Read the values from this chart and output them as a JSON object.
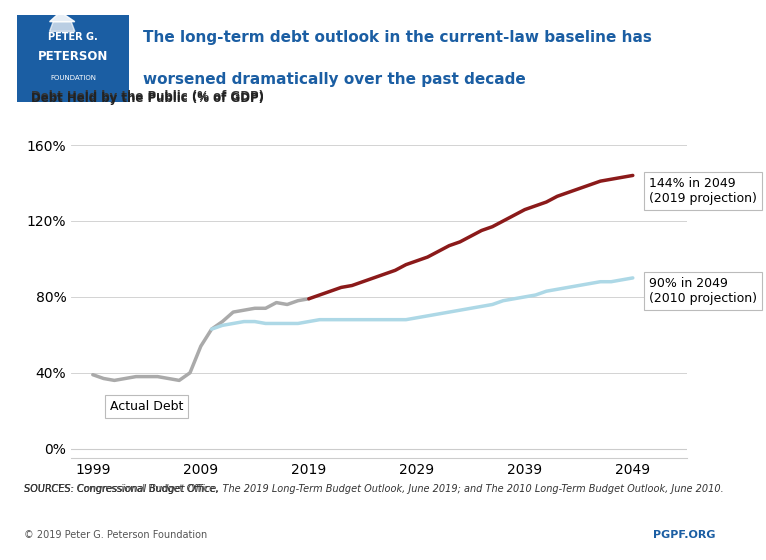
{
  "title_line1": "The long-term debt outlook in the current-law baseline has",
  "title_line2": "worsened dramatically over the past decade",
  "ylabel": "Debt Held by the Public (% of GDP)",
  "xlabel_ticks": [
    1999,
    2009,
    2019,
    2029,
    2039,
    2049
  ],
  "yticks": [
    0,
    40,
    80,
    120,
    160
  ],
  "ytick_labels": [
    "0%",
    "40%",
    "80%",
    "120%",
    "160%"
  ],
  "ylim": [
    -5,
    170
  ],
  "xlim": [
    1997,
    2054
  ],
  "title_color": "#1B5EA3",
  "background_color": "#FFFFFF",
  "logo_color": "#1B5EA3",
  "actual_debt_color": "#AAAAAA",
  "projection_2019_color": "#8B1A1A",
  "projection_2010_color": "#ADD8E6",
  "sources_text": "SOURCES: Congressional Budget Office, The 2019 Long-Term Budget Outlook, June 2019; and The 2010 Long-Term Budget Outlook, June 2010.",
  "copyright_text": "© 2019 Peter G. Peterson Foundation",
  "pgpf_text": "PGPF.ORG",
  "actual_debt_label": "Actual Debt",
  "annotation_2019": "144% in 2049\n(2019 projection)",
  "annotation_2010": "90% in 2049\n(2010 projection)",
  "actual_debt_years": [
    1999,
    2000,
    2001,
    2002,
    2003,
    2004,
    2005,
    2006,
    2007,
    2008,
    2009,
    2010,
    2011,
    2012,
    2013,
    2014,
    2015,
    2016,
    2017,
    2018,
    2019
  ],
  "actual_debt_values": [
    39,
    37,
    36,
    37,
    38,
    38,
    38,
    37,
    36,
    40,
    54,
    63,
    67,
    72,
    73,
    74,
    74,
    77,
    76,
    78,
    79
  ],
  "projection_2010_years": [
    2010,
    2011,
    2012,
    2013,
    2014,
    2015,
    2016,
    2017,
    2018,
    2019,
    2020,
    2021,
    2022,
    2023,
    2024,
    2025,
    2026,
    2027,
    2028,
    2029,
    2030,
    2031,
    2032,
    2033,
    2034,
    2035,
    2036,
    2037,
    2038,
    2039,
    2040,
    2041,
    2042,
    2043,
    2044,
    2045,
    2046,
    2047,
    2048,
    2049
  ],
  "projection_2010_values": [
    63,
    65,
    66,
    67,
    67,
    66,
    66,
    66,
    66,
    67,
    68,
    68,
    68,
    68,
    68,
    68,
    68,
    68,
    68,
    69,
    70,
    71,
    72,
    73,
    74,
    75,
    76,
    78,
    79,
    80,
    81,
    83,
    84,
    85,
    86,
    87,
    88,
    88,
    89,
    90
  ],
  "projection_2019_years": [
    2019,
    2020,
    2021,
    2022,
    2023,
    2024,
    2025,
    2026,
    2027,
    2028,
    2029,
    2030,
    2031,
    2032,
    2033,
    2034,
    2035,
    2036,
    2037,
    2038,
    2039,
    2040,
    2041,
    2042,
    2043,
    2044,
    2045,
    2046,
    2047,
    2048,
    2049
  ],
  "projection_2019_values": [
    79,
    81,
    83,
    85,
    86,
    88,
    90,
    92,
    94,
    97,
    99,
    101,
    104,
    107,
    109,
    112,
    115,
    117,
    120,
    123,
    126,
    128,
    130,
    133,
    135,
    137,
    139,
    141,
    142,
    143,
    144
  ]
}
